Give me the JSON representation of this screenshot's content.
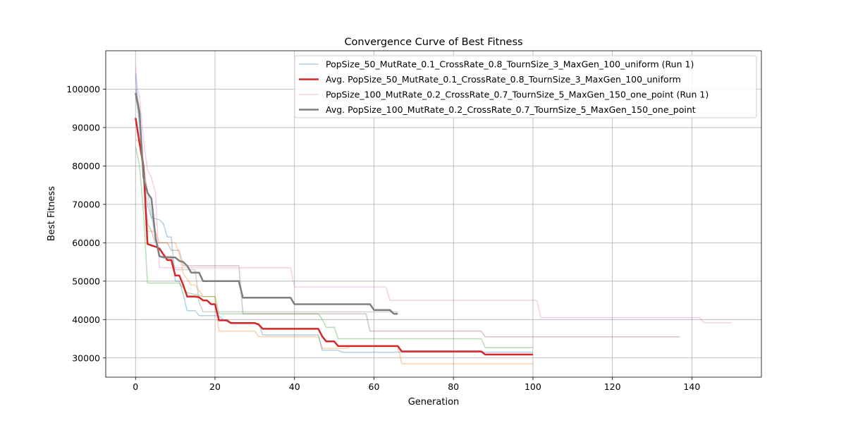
{
  "chart_data": {
    "type": "line",
    "title": "Convergence Curve of Best Fitness",
    "xlabel": "Generation",
    "ylabel": "Best Fitness",
    "xlim": [
      -7.5,
      157.5
    ],
    "ylim": [
      25000,
      110000
    ],
    "xticks": [
      0,
      20,
      40,
      60,
      80,
      100,
      120,
      140
    ],
    "yticks": [
      30000,
      40000,
      50000,
      60000,
      70000,
      80000,
      90000,
      100000
    ],
    "grid": true,
    "legend_position": "top-right",
    "legend": [
      {
        "label": "PopSize_50_MutRate_0.1_CrossRate_0.8_TournSize_3_MaxGen_100_uniform (Run 1)",
        "series": "run1_a"
      },
      {
        "label": "Avg. PopSize_50_MutRate_0.1_CrossRate_0.8_TournSize_3_MaxGen_100_uniform",
        "series": "avg_a"
      },
      {
        "label": "PopSize_100_MutRate_0.2_CrossRate_0.7_TournSize_5_MaxGen_150_one_point (Run 1)",
        "series": "run1_b"
      },
      {
        "label": "Avg. PopSize_100_MutRate_0.2_CrossRate_0.7_TournSize_5_MaxGen_150_one_point",
        "series": "avg_b"
      }
    ],
    "series": [
      {
        "id": "run2_a",
        "color": "#ff7f0e",
        "opacity": 0.35,
        "width": 1.5,
        "points": [
          [
            0,
            87000
          ],
          [
            1,
            86000
          ],
          [
            2,
            78000
          ],
          [
            3,
            63000
          ],
          [
            5,
            63000
          ],
          [
            6,
            60000
          ],
          [
            10,
            60000
          ],
          [
            11,
            57000
          ],
          [
            12,
            52000
          ],
          [
            14,
            49000
          ],
          [
            15,
            49000
          ],
          [
            16,
            47500
          ],
          [
            17,
            46000
          ],
          [
            20,
            46000
          ],
          [
            21,
            37000
          ],
          [
            30,
            37000
          ],
          [
            31,
            35500
          ],
          [
            46,
            35500
          ],
          [
            47,
            32500
          ],
          [
            53,
            32500
          ],
          [
            54,
            33000
          ],
          [
            66,
            33000
          ],
          [
            67,
            28500
          ],
          [
            100,
            28500
          ]
        ]
      },
      {
        "id": "run3_a",
        "color": "#2ca02c",
        "opacity": 0.35,
        "width": 1.5,
        "points": [
          [
            0,
            85000
          ],
          [
            1,
            80000
          ],
          [
            2,
            68000
          ],
          [
            3,
            49500
          ],
          [
            10,
            49500
          ],
          [
            11,
            49500
          ],
          [
            13,
            47000
          ],
          [
            17,
            46000
          ],
          [
            20,
            46000
          ],
          [
            21,
            41500
          ],
          [
            46,
            41500
          ],
          [
            47,
            40000
          ],
          [
            48,
            38000
          ],
          [
            50,
            38000
          ],
          [
            51,
            35000
          ],
          [
            87,
            35000
          ],
          [
            88,
            32700
          ],
          [
            100,
            32700
          ]
        ]
      },
      {
        "id": "run2_b",
        "color": "#8c564b",
        "opacity": 0.35,
        "width": 1.5,
        "points": [
          [
            0,
            100000
          ],
          [
            1,
            95000
          ],
          [
            2,
            77000
          ],
          [
            3,
            65000
          ],
          [
            4,
            63000
          ],
          [
            5,
            60000
          ],
          [
            8,
            60000
          ],
          [
            9,
            58000
          ],
          [
            11,
            58000
          ],
          [
            12,
            54000
          ],
          [
            26,
            54000
          ],
          [
            27,
            41500
          ],
          [
            58,
            41500
          ],
          [
            59,
            37000
          ],
          [
            87,
            37000
          ],
          [
            88,
            35500
          ],
          [
            137,
            35500
          ]
        ]
      },
      {
        "id": "run3_b",
        "color": "#7f7f7f",
        "opacity": 0.35,
        "width": 1.5,
        "points": [
          [
            0,
            98000
          ],
          [
            1,
            92000
          ],
          [
            2,
            80000
          ],
          [
            4,
            67000
          ],
          [
            6,
            56500
          ],
          [
            9,
            56500
          ],
          [
            10,
            53000
          ],
          [
            15,
            53000
          ],
          [
            16,
            44500
          ],
          [
            17,
            42000
          ],
          [
            26,
            42000
          ],
          [
            27,
            42000
          ],
          [
            59,
            42000
          ],
          [
            60,
            42000
          ],
          [
            66,
            42000
          ]
        ]
      },
      {
        "id": "run1_a",
        "color": "#1f77b4",
        "opacity": 0.35,
        "width": 1.5,
        "points": [
          [
            0,
            104000
          ],
          [
            0.5,
            97000
          ],
          [
            1,
            90000
          ],
          [
            2,
            77000
          ],
          [
            3,
            70000
          ],
          [
            4,
            66500
          ],
          [
            6,
            66000
          ],
          [
            7,
            65000
          ],
          [
            8,
            61500
          ],
          [
            9,
            61500
          ],
          [
            10,
            50000
          ],
          [
            11,
            50000
          ],
          [
            12,
            46500
          ],
          [
            13,
            42300
          ],
          [
            15,
            42300
          ],
          [
            16,
            41000
          ],
          [
            21,
            41000
          ],
          [
            22,
            40000
          ],
          [
            24,
            39000
          ],
          [
            31,
            39000
          ],
          [
            32,
            36000
          ],
          [
            46,
            36000
          ],
          [
            47,
            32000
          ],
          [
            51,
            32000
          ],
          [
            52,
            31500
          ],
          [
            66,
            31500
          ],
          [
            67,
            31500
          ],
          [
            100,
            31500
          ]
        ]
      },
      {
        "id": "run1_b",
        "color": "#e377c2",
        "opacity": 0.35,
        "width": 1.5,
        "points": [
          [
            0,
            106000
          ],
          [
            0.5,
            100000
          ],
          [
            1,
            98000
          ],
          [
            2,
            87000
          ],
          [
            3,
            79000
          ],
          [
            4,
            77000
          ],
          [
            5,
            73000
          ],
          [
            6,
            53500
          ],
          [
            26,
            53500
          ],
          [
            27,
            53500
          ],
          [
            39,
            53500
          ],
          [
            40,
            48500
          ],
          [
            63,
            48500
          ],
          [
            64,
            45000
          ],
          [
            101,
            45000
          ],
          [
            102,
            40500
          ],
          [
            142,
            40500
          ],
          [
            143,
            39200
          ],
          [
            150,
            39200
          ]
        ]
      },
      {
        "id": "avg_a",
        "color": "#d62728",
        "opacity": 1,
        "width": 2.5,
        "points": [
          [
            0,
            92500
          ],
          [
            1,
            86000
          ],
          [
            2,
            80000
          ],
          [
            3,
            59700
          ],
          [
            4,
            59300
          ],
          [
            5,
            59000
          ],
          [
            6,
            58500
          ],
          [
            7,
            57000
          ],
          [
            8,
            55500
          ],
          [
            9,
            55500
          ],
          [
            10,
            51500
          ],
          [
            11,
            51500
          ],
          [
            12,
            49000
          ],
          [
            13,
            46000
          ],
          [
            15,
            46000
          ],
          [
            16,
            45800
          ],
          [
            17,
            45000
          ],
          [
            18,
            45000
          ],
          [
            19,
            44000
          ],
          [
            20,
            44000
          ],
          [
            21,
            39800
          ],
          [
            23,
            39800
          ],
          [
            24,
            39100
          ],
          [
            30,
            39100
          ],
          [
            31,
            38700
          ],
          [
            32,
            37600
          ],
          [
            46,
            37600
          ],
          [
            47,
            35600
          ],
          [
            48,
            34300
          ],
          [
            50,
            34300
          ],
          [
            51,
            33100
          ],
          [
            66,
            33100
          ],
          [
            67,
            31700
          ],
          [
            87,
            31700
          ],
          [
            88,
            30900
          ],
          [
            100,
            30900
          ]
        ]
      },
      {
        "id": "avg_b",
        "color": "#7f7f7f",
        "opacity": 1,
        "width": 2.5,
        "points": [
          [
            0,
            99000
          ],
          [
            1,
            94000
          ],
          [
            2,
            77000
          ],
          [
            3,
            73000
          ],
          [
            4,
            71500
          ],
          [
            5,
            61500
          ],
          [
            6,
            56500
          ],
          [
            7,
            56200
          ],
          [
            10,
            56200
          ],
          [
            11,
            55300
          ],
          [
            12,
            55000
          ],
          [
            13,
            54000
          ],
          [
            14,
            52200
          ],
          [
            16,
            52200
          ],
          [
            17,
            50000
          ],
          [
            26,
            50000
          ],
          [
            27,
            45700
          ],
          [
            39,
            45700
          ],
          [
            40,
            44000
          ],
          [
            59,
            44000
          ],
          [
            60,
            42500
          ],
          [
            64,
            42500
          ],
          [
            65,
            41500
          ],
          [
            66,
            41500
          ]
        ]
      }
    ]
  }
}
